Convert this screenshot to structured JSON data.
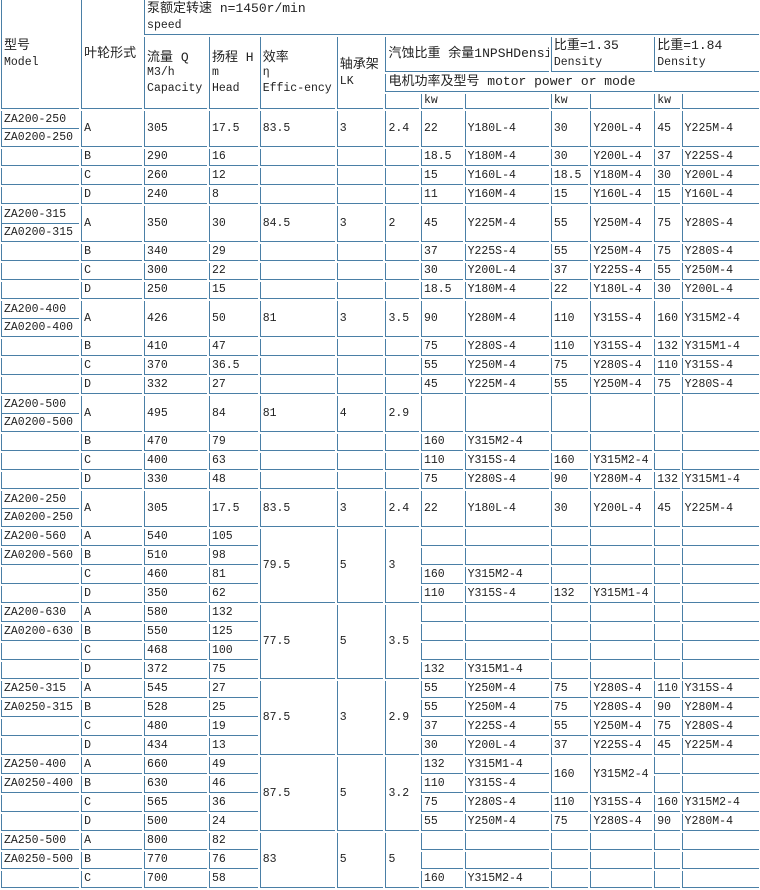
{
  "header": {
    "model": [
      "型号",
      "Model"
    ],
    "impeller": "叶轮形式",
    "speed": [
      "泵额定转速 n=1450r/min",
      "speed"
    ],
    "capacity": [
      "流量 Q",
      "M3/h",
      "Capacity"
    ],
    "head": [
      "扬程 H",
      "m",
      "Head"
    ],
    "efficiency": [
      "效率",
      "η",
      "Effic-ency"
    ],
    "bearing": [
      "轴承架",
      "LK"
    ],
    "npsh": "汽蚀比重 余量1NPSHDensity",
    "density1": [
      "比重=1.35",
      "Density"
    ],
    "density2": [
      "比重=1.84",
      "Density"
    ],
    "motor": "电机功率及型号 motor power or mode",
    "units": [
      "",
      "kw",
      "",
      "kw",
      "",
      "kw",
      ""
    ]
  },
  "rows": [
    [
      [
        "ZA200-250",
        "ZA0200-250"
      ],
      "A",
      "305",
      "17.5",
      "83.5",
      "3",
      "2.4",
      "22",
      "Y180L-4",
      "30",
      "Y200L-4",
      "45",
      "Y225M-4"
    ],
    [
      "",
      "B",
      "290",
      "16",
      "",
      "",
      "",
      "18.5",
      "Y180M-4",
      "30",
      "Y200L-4",
      "37",
      "Y225S-4"
    ],
    [
      "",
      "C",
      "260",
      "12",
      "",
      "",
      "",
      "15",
      "Y160L-4",
      "18.5",
      "Y180M-4",
      "30",
      "Y200L-4"
    ],
    [
      "",
      "D",
      "240",
      "8",
      "",
      "",
      "",
      "11",
      "Y160M-4",
      "15",
      "Y160L-4",
      "15",
      "Y160L-4"
    ],
    [
      [
        "ZA200-315",
        "ZA0200-315"
      ],
      "A",
      "350",
      "30",
      "84.5",
      "3",
      "2",
      "45",
      "Y225M-4",
      "55",
      "Y250M-4",
      "75",
      "Y280S-4"
    ],
    [
      "",
      "B",
      "340",
      "29",
      "",
      "",
      "",
      "37",
      "Y225S-4",
      "55",
      "Y250M-4",
      "75",
      "Y280S-4"
    ],
    [
      "",
      "C",
      "300",
      "22",
      "",
      "",
      "",
      "30",
      "Y200L-4",
      "37",
      "Y225S-4",
      "55",
      "Y250M-4"
    ],
    [
      "",
      "D",
      "250",
      "15",
      "",
      "",
      "",
      "18.5",
      "Y180M-4",
      "22",
      "Y180L-4",
      "30",
      "Y200L-4"
    ],
    [
      [
        "ZA200-400",
        "ZA0200-400"
      ],
      "A",
      "426",
      "50",
      "81",
      "3",
      "3.5",
      "90",
      "Y280M-4",
      "110",
      "Y315S-4",
      "160",
      "Y315M2-4"
    ],
    [
      "",
      "B",
      "410",
      "47",
      "",
      "",
      "",
      "75",
      "Y280S-4",
      "110",
      "Y315S-4",
      "132",
      "Y315M1-4"
    ],
    [
      "",
      "C",
      "370",
      "36.5",
      "",
      "",
      "",
      "55",
      "Y250M-4",
      "75",
      "Y280S-4",
      "110",
      "Y315S-4"
    ],
    [
      "",
      "D",
      "332",
      "27",
      "",
      "",
      "",
      "45",
      "Y225M-4",
      "55",
      "Y250M-4",
      "75",
      "Y280S-4"
    ],
    [
      [
        "ZA200-500",
        "ZA0200-500"
      ],
      "A",
      "495",
      "84",
      "81",
      "4",
      "2.9",
      "",
      "",
      "",
      "",
      "",
      ""
    ],
    [
      "",
      "B",
      "470",
      "79",
      "",
      "",
      "",
      "160",
      "Y315M2-4",
      "",
      "",
      "",
      ""
    ],
    [
      "",
      "C",
      "400",
      "63",
      "",
      "",
      "",
      "110",
      "Y315S-4",
      "160",
      "Y315M2-4",
      "",
      ""
    ],
    [
      "",
      "D",
      "330",
      "48",
      "",
      "",
      "",
      "75",
      "Y280S-4",
      "90",
      "Y280M-4",
      "132",
      "Y315M1-4"
    ],
    [
      [
        "ZA200-250",
        "ZA0200-250"
      ],
      "A",
      "305",
      "17.5",
      "83.5",
      "3",
      "2.4",
      "22",
      "Y180L-4",
      "30",
      "Y200L-4",
      "45",
      "Y225M-4"
    ],
    [
      "ZA200-560",
      "A",
      "540",
      "105",
      {
        "t": "79.5",
        "rs": 4
      },
      {
        "t": "5",
        "rs": 4
      },
      {
        "t": "3",
        "rs": 4
      },
      "",
      "",
      "",
      "",
      "",
      ""
    ],
    [
      "ZA0200-560",
      "B",
      "510",
      "98",
      "",
      "",
      "",
      "",
      "",
      ""
    ],
    [
      "",
      "C",
      "460",
      "81",
      "160",
      "Y315M2-4",
      "",
      "",
      "",
      ""
    ],
    [
      "",
      "D",
      "350",
      "62",
      "110",
      "Y315S-4",
      "132",
      "Y315M1-4",
      "",
      ""
    ],
    [
      "ZA200-630",
      "A",
      "580",
      "132",
      {
        "t": "77.5",
        "rs": 4
      },
      {
        "t": "5",
        "rs": 4
      },
      {
        "t": "3.5",
        "rs": 4
      },
      "",
      "",
      "",
      "",
      "",
      ""
    ],
    [
      "ZA0200-630",
      "B",
      "550",
      "125",
      "",
      "",
      "",
      "",
      "",
      ""
    ],
    [
      "",
      "C",
      "468",
      "100",
      "",
      "",
      "",
      "",
      "",
      ""
    ],
    [
      "",
      "D",
      "372",
      "75",
      "132",
      "Y315M1-4",
      "",
      "",
      "",
      ""
    ],
    [
      "ZA250-315",
      "A",
      "545",
      "27",
      {
        "t": "87.5",
        "rs": 4
      },
      {
        "t": "3",
        "rs": 4
      },
      {
        "t": "2.9",
        "rs": 4
      },
      "55",
      "Y250M-4",
      "75",
      "Y280S-4",
      "110",
      "Y315S-4"
    ],
    [
      "ZA0250-315",
      "B",
      "528",
      "25",
      "55",
      "Y250M-4",
      "75",
      "Y280S-4",
      "90",
      "Y280M-4"
    ],
    [
      "",
      "C",
      "480",
      "19",
      "37",
      "Y225S-4",
      "55",
      "Y250M-4",
      "75",
      "Y280S-4"
    ],
    [
      "",
      "D",
      "434",
      "13",
      "30",
      "Y200L-4",
      "37",
      "Y225S-4",
      "45",
      "Y225M-4"
    ],
    [
      "ZA250-400",
      "A",
      "660",
      "49",
      {
        "t": "87.5",
        "rs": 4
      },
      {
        "t": "5",
        "rs": 4
      },
      {
        "t": "3.2",
        "rs": 4
      },
      "132",
      "Y315M1-4",
      {
        "t": "160",
        "rs": 2
      },
      {
        "t": "Y315M2-4",
        "rs": 2
      },
      "",
      ""
    ],
    [
      "ZA0250-400",
      "B",
      "630",
      "46",
      "110",
      "Y315S-4",
      "",
      ""
    ],
    [
      "",
      "C",
      "565",
      "36",
      "75",
      "Y280S-4",
      "110",
      "Y315S-4",
      "160",
      "Y315M2-4"
    ],
    [
      "",
      "D",
      "500",
      "24",
      "55",
      "Y250M-4",
      "75",
      "Y280S-4",
      "90",
      "Y280M-4"
    ],
    [
      "ZA250-500",
      "A",
      "800",
      "82",
      {
        "t": "83",
        "rs": 3
      },
      {
        "t": "5",
        "rs": 3
      },
      {
        "t": "5",
        "rs": 3
      },
      "",
      "",
      "",
      "",
      "",
      ""
    ],
    [
      "ZA0250-500",
      "B",
      "770",
      "76",
      "",
      "",
      "",
      "",
      "",
      ""
    ],
    [
      "",
      "C",
      "700",
      "58",
      "160",
      "Y315M2-4",
      "",
      "",
      "",
      ""
    ]
  ]
}
